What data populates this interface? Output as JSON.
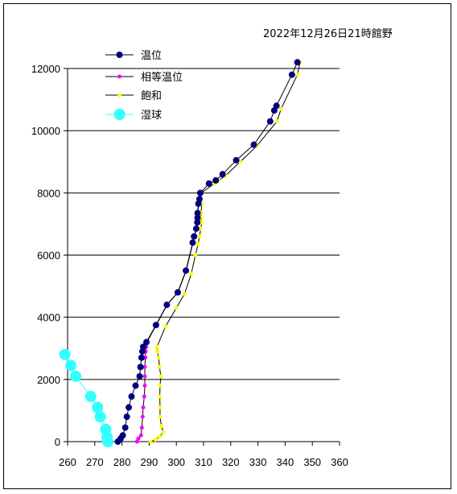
{
  "chart_data": {
    "type": "scatter",
    "title": "2022年12月26日21時館野",
    "xlim": [
      260,
      360
    ],
    "ylim": [
      0,
      12000
    ],
    "x_ticks": [
      "260",
      "270",
      "280",
      "290",
      "300",
      "310",
      "320",
      "330",
      "340",
      "350",
      "360"
    ],
    "y_ticks": [
      "0",
      "2000",
      "4000",
      "6000",
      "8000",
      "10000",
      "12000"
    ],
    "grid": "horizontal",
    "legend_position": "top-left",
    "colors": {
      "temperature": "#000080",
      "equivalent": "#ff00ff",
      "saturated": "#ffff00",
      "wetbulb": "#33ffff",
      "line": "#000000"
    },
    "series": [
      {
        "name": "温位",
        "key": "temperature",
        "points": [
          [
            278.5,
            0
          ],
          [
            279.5,
            100
          ],
          [
            280.3,
            200
          ],
          [
            281.2,
            450
          ],
          [
            281.8,
            800
          ],
          [
            282.5,
            1100
          ],
          [
            283.5,
            1450
          ],
          [
            285.0,
            1800
          ],
          [
            286.5,
            2100
          ],
          [
            286.8,
            2400
          ],
          [
            287.2,
            2700
          ],
          [
            287.5,
            2900
          ],
          [
            287.8,
            3050
          ],
          [
            289.0,
            3200
          ],
          [
            292.5,
            3750
          ],
          [
            296.5,
            4400
          ],
          [
            300.5,
            4800
          ],
          [
            303.5,
            5500
          ],
          [
            306.0,
            6400
          ],
          [
            306.5,
            6600
          ],
          [
            307.3,
            6850
          ],
          [
            307.7,
            7050
          ],
          [
            307.8,
            7200
          ],
          [
            307.8,
            7350
          ],
          [
            308.1,
            7650
          ],
          [
            308.5,
            7800
          ],
          [
            308.8,
            8000
          ],
          [
            312.0,
            8300
          ],
          [
            314.5,
            8400
          ],
          [
            317.0,
            8600
          ],
          [
            322.0,
            9050
          ],
          [
            328.5,
            9550
          ],
          [
            334.5,
            10300
          ],
          [
            336.0,
            10650
          ],
          [
            336.8,
            10800
          ],
          [
            342.5,
            11800
          ],
          [
            344.5,
            12200
          ]
        ]
      },
      {
        "name": "相等温位",
        "key": "equivalent",
        "points": [
          [
            285.5,
            0
          ],
          [
            286.0,
            100
          ],
          [
            287.0,
            200
          ],
          [
            287.3,
            450
          ],
          [
            287.6,
            800
          ],
          [
            287.8,
            1100
          ],
          [
            288.2,
            1450
          ],
          [
            288.4,
            1800
          ],
          [
            288.4,
            2100
          ],
          [
            288.4,
            2400
          ],
          [
            288.6,
            2700
          ],
          [
            288.7,
            2900
          ],
          [
            288.9,
            3050
          ],
          [
            289.2,
            3200
          ],
          [
            292.6,
            3750
          ],
          [
            296.6,
            4400
          ],
          [
            300.6,
            4800
          ],
          [
            303.6,
            5500
          ],
          [
            306.1,
            6400
          ],
          [
            306.6,
            6600
          ],
          [
            307.4,
            6850
          ],
          [
            307.8,
            7050
          ],
          [
            307.9,
            7200
          ],
          [
            307.9,
            7350
          ],
          [
            308.2,
            7650
          ],
          [
            308.6,
            7800
          ],
          [
            308.9,
            8000
          ]
        ]
      },
      {
        "name": "飽和",
        "key": "saturated",
        "points": [
          [
            290.5,
            0
          ],
          [
            292.3,
            60
          ],
          [
            293.8,
            160
          ],
          [
            295.2,
            300
          ],
          [
            294.5,
            500
          ],
          [
            294.0,
            800
          ],
          [
            294.0,
            1100
          ],
          [
            293.9,
            1450
          ],
          [
            294.0,
            1800
          ],
          [
            294.3,
            2100
          ],
          [
            293.8,
            2400
          ],
          [
            293.5,
            2700
          ],
          [
            293.0,
            2900
          ],
          [
            292.9,
            3050
          ],
          [
            296.0,
            3700
          ],
          [
            300.0,
            4300
          ],
          [
            303.0,
            4750
          ],
          [
            305.5,
            5400
          ],
          [
            307.0,
            6000
          ],
          [
            308.0,
            6350
          ],
          [
            308.5,
            6600
          ],
          [
            309.0,
            6850
          ],
          [
            309.3,
            7050
          ],
          [
            309.1,
            7200
          ],
          [
            309.1,
            7350
          ],
          [
            309.3,
            7650
          ],
          [
            309.0,
            7800
          ],
          [
            309.2,
            8000
          ],
          [
            314.0,
            8300
          ],
          [
            315.5,
            8400
          ],
          [
            318.0,
            8550
          ],
          [
            323.5,
            9000
          ],
          [
            329.5,
            9500
          ],
          [
            337.0,
            10300
          ],
          [
            338.5,
            10700
          ],
          [
            344.5,
            11800
          ],
          [
            345.5,
            12200
          ]
        ]
      },
      {
        "name": "湿球",
        "key": "wetbulb",
        "points": [
          [
            274.8,
            0
          ],
          [
            274.5,
            150
          ],
          [
            274.0,
            400
          ],
          [
            272.0,
            800
          ],
          [
            271.0,
            1100
          ],
          [
            268.5,
            1450
          ],
          [
            263.0,
            2100
          ],
          [
            261.2,
            2450
          ],
          [
            259.0,
            2800
          ]
        ]
      }
    ]
  }
}
